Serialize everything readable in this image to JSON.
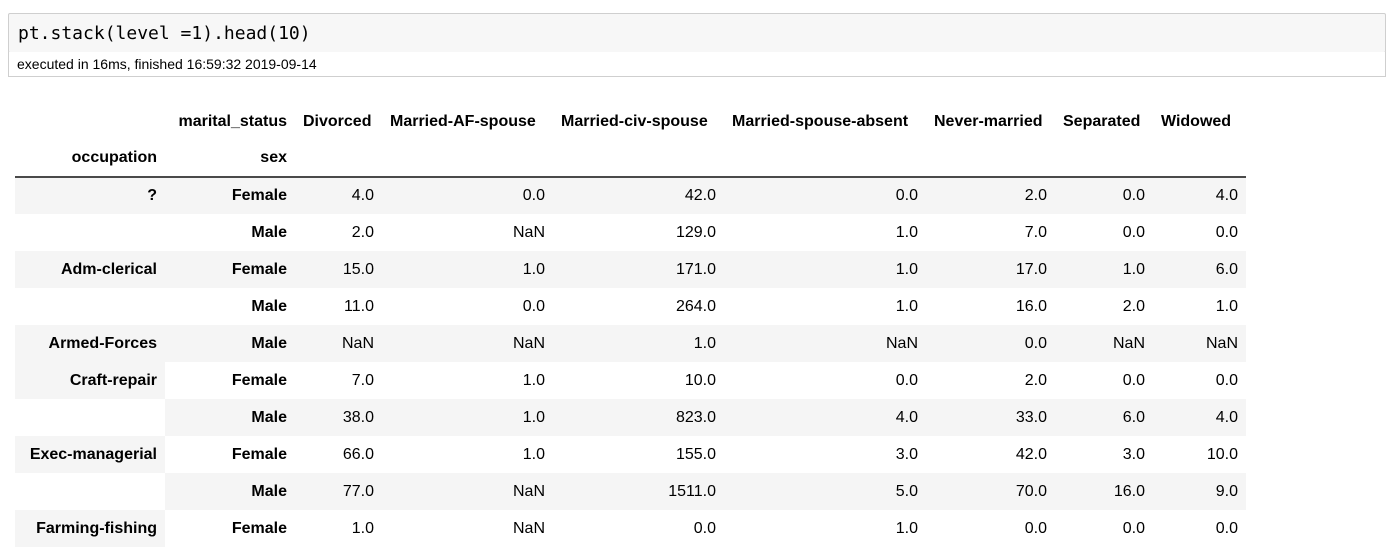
{
  "input_cell": {
    "code": "pt.stack(level =1).head(10)"
  },
  "execution": {
    "status": "executed in 16ms, finished 16:59:32 2019-09-14"
  },
  "table": {
    "column_level_name": "marital_status",
    "index_names": [
      "occupation",
      "sex"
    ],
    "columns": [
      "Divorced",
      "Married-AF-spouse",
      "Married-civ-spouse",
      "Married-spouse-absent",
      "Never-married",
      "Separated",
      "Widowed"
    ],
    "rows": [
      {
        "occupation": "?",
        "sex": "Female",
        "values": [
          "4.0",
          "0.0",
          "42.0",
          "0.0",
          "2.0",
          "0.0",
          "4.0"
        ]
      },
      {
        "occupation": "",
        "sex": "Male",
        "values": [
          "2.0",
          "NaN",
          "129.0",
          "1.0",
          "7.0",
          "0.0",
          "0.0"
        ]
      },
      {
        "occupation": "Adm-clerical",
        "sex": "Female",
        "values": [
          "15.0",
          "1.0",
          "171.0",
          "1.0",
          "17.0",
          "1.0",
          "6.0"
        ]
      },
      {
        "occupation": "",
        "sex": "Male",
        "values": [
          "11.0",
          "0.0",
          "264.0",
          "1.0",
          "16.0",
          "2.0",
          "1.0"
        ]
      },
      {
        "occupation": "Armed-Forces",
        "sex": "Male",
        "values": [
          "NaN",
          "NaN",
          "1.0",
          "NaN",
          "0.0",
          "NaN",
          "NaN"
        ]
      },
      {
        "occupation": "Craft-repair",
        "sex": "Female",
        "values": [
          "7.0",
          "1.0",
          "10.0",
          "0.0",
          "2.0",
          "0.0",
          "0.0"
        ]
      },
      {
        "occupation": "",
        "sex": "Male",
        "values": [
          "38.0",
          "1.0",
          "823.0",
          "4.0",
          "33.0",
          "6.0",
          "4.0"
        ]
      },
      {
        "occupation": "Exec-managerial",
        "sex": "Female",
        "values": [
          "66.0",
          "1.0",
          "155.0",
          "3.0",
          "42.0",
          "3.0",
          "10.0"
        ]
      },
      {
        "occupation": "",
        "sex": "Male",
        "values": [
          "77.0",
          "NaN",
          "1511.0",
          "5.0",
          "70.0",
          "16.0",
          "9.0"
        ]
      },
      {
        "occupation": "Farming-fishing",
        "sex": "Female",
        "values": [
          "1.0",
          "NaN",
          "0.0",
          "1.0",
          "0.0",
          "0.0",
          "0.0"
        ]
      }
    ]
  }
}
